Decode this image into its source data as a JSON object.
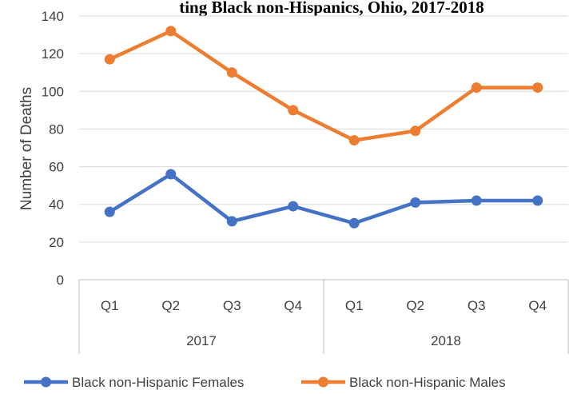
{
  "chart_data": {
    "type": "line",
    "title": "ting Black non-Hispanics, Ohio, 2017-2018",
    "ylabel": "Number of Deaths",
    "xlabel": "",
    "ylim": [
      0,
      140
    ],
    "yticks": [
      0,
      20,
      40,
      60,
      80,
      100,
      120,
      140
    ],
    "categories": [
      "Q1",
      "Q2",
      "Q3",
      "Q4",
      "Q1",
      "Q2",
      "Q3",
      "Q4"
    ],
    "category_groups": [
      {
        "label": "2017",
        "span": 4
      },
      {
        "label": "2018",
        "span": 4
      }
    ],
    "grid": "horizontal",
    "legend_position": "bottom",
    "series": [
      {
        "name": "Black non-Hispanic Females",
        "color": "#4472C4",
        "values": [
          36,
          56,
          31,
          39,
          30,
          41,
          42,
          42
        ]
      },
      {
        "name": "Black non-Hispanic Males",
        "color": "#ED7D31",
        "values": [
          117,
          132,
          110,
          90,
          74,
          79,
          102,
          102
        ]
      }
    ]
  }
}
